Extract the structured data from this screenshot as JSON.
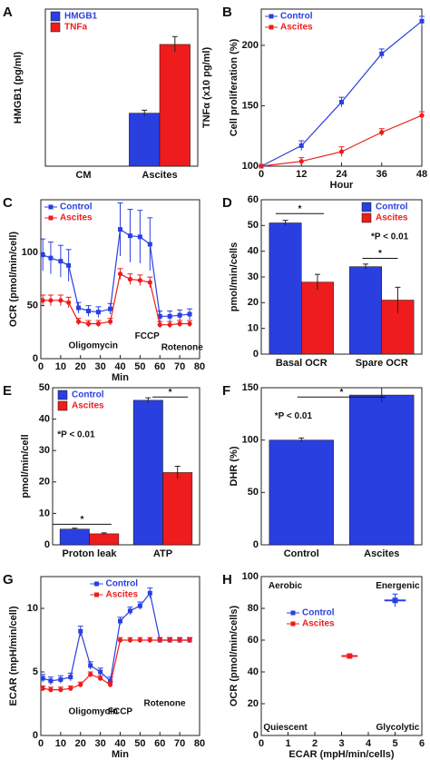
{
  "chart_data": [
    {
      "type": "bar",
      "panel": "A",
      "ylabel": "HMGB1 (pg/ml)",
      "y2label": "TNFα (x10 pg/ml)",
      "categories": [
        "CM",
        "Ascites"
      ],
      "ylim": [
        0,
        80
      ],
      "yticks": [],
      "legend": "upper left",
      "series": [
        {
          "name": "HMGB1",
          "color": "#2a3fe0",
          "values": [
            null,
            27
          ],
          "errors": [
            null,
            1.5
          ]
        },
        {
          "name": "TNFa",
          "color": "#ee1c1c",
          "values": [
            null,
            62
          ],
          "errors": [
            null,
            4
          ]
        }
      ]
    },
    {
      "type": "line",
      "panel": "B",
      "xlabel": "Hour",
      "ylabel": "Cell proliferation (%)",
      "x": [
        0,
        12,
        24,
        36,
        48
      ],
      "xlim": [
        0,
        48
      ],
      "xticks": [
        0,
        12,
        24,
        36,
        48
      ],
      "ylim": [
        100,
        230
      ],
      "yticks": [
        100,
        150,
        200
      ],
      "legend": "upper left",
      "series": [
        {
          "name": "Control",
          "color": "#2a3fe0",
          "marker": "square",
          "values": [
            100,
            117,
            153,
            193,
            220
          ],
          "errors": [
            0,
            4,
            4,
            4,
            4
          ]
        },
        {
          "name": "Ascites",
          "color": "#ee1c1c",
          "marker": "circle",
          "values": [
            100,
            104,
            112,
            128,
            142
          ],
          "errors": [
            0,
            3,
            4,
            3,
            3
          ]
        }
      ]
    },
    {
      "type": "line",
      "panel": "C",
      "xlabel": "Min",
      "ylabel": "OCR (pmol/min/cell)",
      "x": [
        1,
        5,
        10,
        14,
        19,
        24,
        29,
        35,
        40,
        45,
        50,
        55,
        60,
        65,
        70,
        75
      ],
      "xlim": [
        0,
        80
      ],
      "xticks": [
        0,
        10,
        20,
        30,
        40,
        50,
        60,
        70,
        80
      ],
      "ylim": [
        0,
        150
      ],
      "yticks": [
        0,
        50,
        100
      ],
      "legend": "upper left",
      "annotations": [
        "Oligomycin",
        "FCCP",
        "Rotenone"
      ],
      "series": [
        {
          "name": "Control",
          "color": "#2a3fe0",
          "marker": "square",
          "values": [
            98,
            95,
            92,
            88,
            48,
            45,
            44,
            47,
            122,
            116,
            115,
            108,
            40,
            40,
            41,
            42
          ],
          "errors": [
            15,
            15,
            15,
            15,
            5,
            5,
            5,
            5,
            25,
            25,
            25,
            25,
            5,
            5,
            5,
            5
          ]
        },
        {
          "name": "Ascites",
          "color": "#ee1c1c",
          "marker": "circle",
          "values": [
            55,
            55,
            55,
            53,
            35,
            33,
            33,
            35,
            80,
            75,
            74,
            72,
            32,
            32,
            33,
            33
          ],
          "errors": [
            5,
            5,
            5,
            5,
            3,
            3,
            3,
            3,
            5,
            5,
            5,
            5,
            3,
            3,
            3,
            3
          ]
        }
      ]
    },
    {
      "type": "bar",
      "panel": "D",
      "ylabel": "pmol/min/cells",
      "categories": [
        "Basal OCR",
        "Spare OCR"
      ],
      "ylim": [
        0,
        60
      ],
      "yticks": [
        0,
        10,
        20,
        30,
        40,
        50,
        60
      ],
      "legend": "upper right",
      "annotations": [
        "*",
        "*P < 0.01",
        "*"
      ],
      "series": [
        {
          "name": "Control",
          "color": "#2a3fe0",
          "values": [
            51,
            34
          ],
          "errors": [
            1,
            1
          ]
        },
        {
          "name": "Ascites",
          "color": "#ee1c1c",
          "values": [
            28,
            21
          ],
          "errors": [
            3,
            5
          ]
        }
      ]
    },
    {
      "type": "bar",
      "panel": "E",
      "ylabel": "pmol/min/cell",
      "categories": [
        "Proton leak",
        "ATP"
      ],
      "ylim": [
        0,
        50
      ],
      "yticks": [
        0,
        10,
        20,
        30,
        40,
        50
      ],
      "legend": "upper left",
      "annotations": [
        "*P < 0.01",
        "*",
        "*"
      ],
      "series": [
        {
          "name": "Control",
          "color": "#2a3fe0",
          "values": [
            5,
            46
          ],
          "errors": [
            0.3,
            0.8
          ]
        },
        {
          "name": "Ascites",
          "color": "#ee1c1c",
          "values": [
            3.5,
            23
          ],
          "errors": [
            0.3,
            2
          ]
        }
      ]
    },
    {
      "type": "bar",
      "panel": "F",
      "ylabel": "DHR (%)",
      "categories": [
        "Control",
        "Ascites"
      ],
      "ylim": [
        0,
        150
      ],
      "yticks": [
        0,
        50,
        100,
        150
      ],
      "annotations": [
        "*P < 0.01",
        "*"
      ],
      "color": "#2a3fe0",
      "values": [
        100,
        143
      ],
      "errors": [
        2,
        7
      ]
    },
    {
      "type": "line",
      "panel": "G",
      "xlabel": "Min",
      "ylabel": "ECAR (mpH/min/cell)",
      "x": [
        1,
        5,
        10,
        15,
        20,
        25,
        30,
        35,
        40,
        45,
        50,
        55,
        60,
        65,
        70,
        75
      ],
      "xlim": [
        0,
        80
      ],
      "xticks": [
        0,
        10,
        20,
        30,
        40,
        50,
        60,
        70,
        80
      ],
      "ylim": [
        0,
        12.5
      ],
      "yticks": [
        0,
        5,
        10
      ],
      "legend": "upper center",
      "annotations": [
        "Oligomycin",
        "FCCP",
        "Rotenone"
      ],
      "series": [
        {
          "name": "Control",
          "color": "#2a3fe0",
          "marker": "square",
          "values": [
            4.5,
            4.3,
            4.4,
            4.6,
            8.2,
            5.5,
            5,
            4.3,
            9,
            9.8,
            10.2,
            11.2,
            7.5,
            7.5,
            7.5,
            7.5
          ],
          "errors": [
            0.3,
            0.3,
            0.3,
            0.3,
            0.4,
            0.3,
            0.3,
            0.3,
            0.3,
            0.3,
            0.3,
            0.4,
            0.2,
            0.2,
            0.2,
            0.2
          ]
        },
        {
          "name": "Ascites",
          "color": "#ee1c1c",
          "marker": "circle",
          "values": [
            3.7,
            3.6,
            3.6,
            3.7,
            4,
            4.8,
            4.5,
            4,
            7.5,
            7.5,
            7.5,
            7.5,
            7.5,
            7.5,
            7.5,
            7.5
          ],
          "errors": [
            0.2,
            0.2,
            0.2,
            0.2,
            0.2,
            0.2,
            0.2,
            0.2,
            0.2,
            0.2,
            0.2,
            0.2,
            0.2,
            0.2,
            0.2,
            0.2
          ]
        }
      ]
    },
    {
      "type": "scatter",
      "panel": "H",
      "xlabel": "ECAR (mpH/min/cells)",
      "ylabel": "OCR (pmol/min/cells)",
      "xlim": [
        0,
        6
      ],
      "xticks": [
        0,
        1,
        2,
        3,
        4,
        5,
        6
      ],
      "ylim": [
        0,
        100
      ],
      "yticks": [
        0,
        20,
        40,
        60,
        80,
        100
      ],
      "legend": "upper left",
      "annotations": [
        "Aerobic",
        "Energenic",
        "Quiescent",
        "Glycolytic"
      ],
      "series": [
        {
          "name": "Control",
          "color": "#2a3fe0",
          "x": [
            5
          ],
          "values": [
            85
          ],
          "xerr": [
            0.4
          ],
          "errors": [
            4
          ]
        },
        {
          "name": "Ascites",
          "color": "#ee1c1c",
          "x": [
            3.3
          ],
          "values": [
            50
          ],
          "xerr": [
            0.3
          ],
          "errors": [
            1
          ]
        }
      ]
    }
  ]
}
